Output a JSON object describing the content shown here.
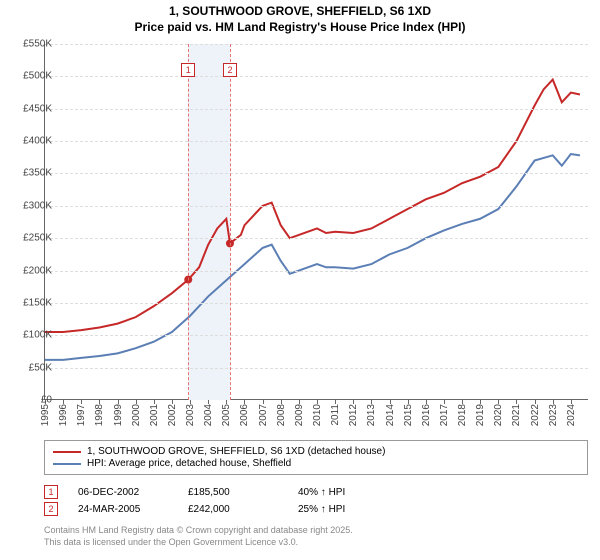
{
  "title_line1": "1, SOUTHWOOD GROVE, SHEFFIELD, S6 1XD",
  "title_line2": "Price paid vs. HM Land Registry's House Price Index (HPI)",
  "chart": {
    "background_color": "#ffffff",
    "grid_color": "#dddddd",
    "axis_color": "#666666",
    "label_color": "#444444",
    "label_fontsize": 10,
    "title_fontsize": 12,
    "ylim": [
      0,
      550
    ],
    "yticks": [
      0,
      50,
      100,
      150,
      200,
      250,
      300,
      350,
      400,
      450,
      500,
      550
    ],
    "ytick_labels": [
      "£0",
      "£50K",
      "£100K",
      "£150K",
      "£200K",
      "£250K",
      "£300K",
      "£350K",
      "£400K",
      "£450K",
      "£500K",
      "£550K"
    ],
    "xlim": [
      1995,
      2025
    ],
    "xticks": [
      1995,
      1996,
      1997,
      1998,
      1999,
      2000,
      2001,
      2002,
      2003,
      2004,
      2005,
      2006,
      2007,
      2008,
      2009,
      2010,
      2011,
      2012,
      2013,
      2014,
      2015,
      2016,
      2017,
      2018,
      2019,
      2020,
      2021,
      2022,
      2023,
      2024
    ],
    "band": {
      "start": 2002.9,
      "end": 2005.2,
      "fill": "#eef2f9",
      "line_color": "#e57373"
    },
    "markers": [
      {
        "id": "1",
        "x": 2002.9,
        "label_y": 520
      },
      {
        "id": "2",
        "x": 2005.2,
        "label_y": 520
      }
    ],
    "series1": {
      "label": "1, SOUTHWOOD GROVE, SHEFFIELD, S6 1XD (detached house)",
      "color": "#c62828",
      "line_width": 2,
      "data": [
        [
          1995,
          105
        ],
        [
          1996,
          105
        ],
        [
          1997,
          108
        ],
        [
          1998,
          112
        ],
        [
          1999,
          118
        ],
        [
          2000,
          128
        ],
        [
          2001,
          145
        ],
        [
          2002,
          165
        ],
        [
          2002.9,
          186
        ],
        [
          2003.5,
          205
        ],
        [
          2004,
          240
        ],
        [
          2004.5,
          265
        ],
        [
          2005,
          280
        ],
        [
          2005.2,
          242
        ],
        [
          2005.8,
          255
        ],
        [
          2006,
          270
        ],
        [
          2006.5,
          285
        ],
        [
          2007,
          300
        ],
        [
          2007.5,
          305
        ],
        [
          2008,
          270
        ],
        [
          2008.5,
          250
        ],
        [
          2009,
          255
        ],
        [
          2010,
          265
        ],
        [
          2010.5,
          258
        ],
        [
          2011,
          260
        ],
        [
          2012,
          258
        ],
        [
          2013,
          265
        ],
        [
          2014,
          280
        ],
        [
          2015,
          295
        ],
        [
          2016,
          310
        ],
        [
          2017,
          320
        ],
        [
          2018,
          335
        ],
        [
          2019,
          345
        ],
        [
          2020,
          360
        ],
        [
          2021,
          400
        ],
        [
          2022,
          455
        ],
        [
          2022.5,
          480
        ],
        [
          2023,
          495
        ],
        [
          2023.5,
          460
        ],
        [
          2024,
          475
        ],
        [
          2024.5,
          472
        ]
      ],
      "points": [
        {
          "x": 2002.9,
          "y": 186
        },
        {
          "x": 2005.2,
          "y": 242
        }
      ]
    },
    "series2": {
      "label": "HPI: Average price, detached house, Sheffield",
      "color": "#5b7fb5",
      "line_width": 2,
      "data": [
        [
          1995,
          62
        ],
        [
          1996,
          62
        ],
        [
          1997,
          65
        ],
        [
          1998,
          68
        ],
        [
          1999,
          72
        ],
        [
          2000,
          80
        ],
        [
          2001,
          90
        ],
        [
          2002,
          105
        ],
        [
          2003,
          130
        ],
        [
          2004,
          160
        ],
        [
          2005,
          185
        ],
        [
          2006,
          210
        ],
        [
          2007,
          235
        ],
        [
          2007.5,
          240
        ],
        [
          2008,
          215
        ],
        [
          2008.5,
          195
        ],
        [
          2009,
          200
        ],
        [
          2010,
          210
        ],
        [
          2010.5,
          205
        ],
        [
          2011,
          205
        ],
        [
          2012,
          203
        ],
        [
          2013,
          210
        ],
        [
          2014,
          225
        ],
        [
          2015,
          235
        ],
        [
          2016,
          250
        ],
        [
          2017,
          262
        ],
        [
          2018,
          272
        ],
        [
          2019,
          280
        ],
        [
          2020,
          295
        ],
        [
          2021,
          330
        ],
        [
          2022,
          370
        ],
        [
          2023,
          378
        ],
        [
          2023.5,
          362
        ],
        [
          2024,
          380
        ],
        [
          2024.5,
          378
        ]
      ]
    }
  },
  "data_points": [
    {
      "id": "1",
      "date": "06-DEC-2002",
      "price": "£185,500",
      "pct": "40% ↑ HPI"
    },
    {
      "id": "2",
      "date": "24-MAR-2005",
      "price": "£242,000",
      "pct": "25% ↑ HPI"
    }
  ],
  "footnote_line1": "Contains HM Land Registry data © Crown copyright and database right 2025.",
  "footnote_line2": "This data is licensed under the Open Government Licence v3.0."
}
